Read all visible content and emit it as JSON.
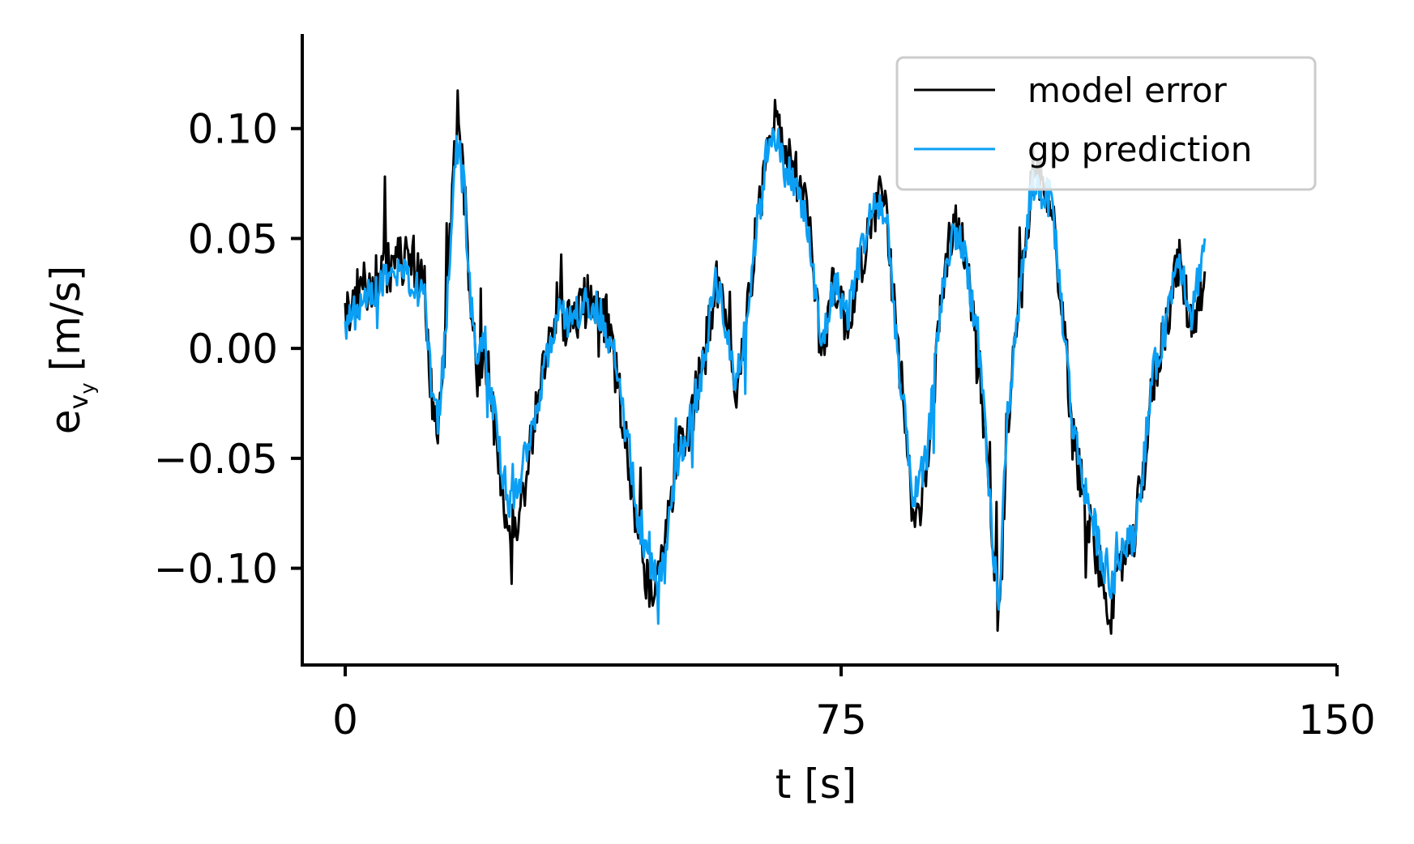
{
  "chart_data": {
    "type": "line",
    "xlabel": "t [s]",
    "ylabel_main": "e",
    "ylabel_sub1": "v",
    "ylabel_sub2": "y",
    "ylabel_unit": "[m/s]",
    "xlim": [
      -6.5,
      150
    ],
    "ylim": [
      -0.144,
      0.143
    ],
    "xticks": [
      0,
      75,
      150
    ],
    "xtick_labels": [
      "0",
      "75",
      "150"
    ],
    "yticks": [
      -0.1,
      -0.05,
      0.0,
      0.05,
      0.1
    ],
    "ytick_labels": [
      "−0.10",
      "−0.05",
      "0.00",
      "0.05",
      "0.10"
    ],
    "grid": false,
    "legend_position": "top-right",
    "series": [
      {
        "name": "model error",
        "color": "#000000",
        "x": [
          0,
          2,
          4,
          6,
          8,
          10,
          12,
          13,
          14,
          15,
          16,
          17,
          18,
          19,
          20,
          21,
          22,
          23,
          24,
          25,
          26,
          28,
          30,
          32,
          34,
          36,
          38,
          40,
          42,
          44,
          46,
          48,
          50,
          52,
          54,
          55,
          56,
          57,
          58,
          59,
          60,
          61,
          62,
          63,
          64,
          65,
          66,
          68,
          70,
          72,
          74,
          76,
          78,
          80,
          81,
          82,
          83,
          84,
          85,
          86,
          88,
          90,
          92,
          94,
          96,
          97,
          98,
          99,
          100,
          102,
          104,
          106,
          107,
          108,
          109,
          110,
          112,
          114,
          116,
          118,
          119,
          120,
          121,
          122,
          124,
          126,
          128,
          130
        ],
        "y": [
          0.015,
          0.025,
          0.03,
          0.035,
          0.04,
          0.042,
          0.03,
          -0.02,
          -0.04,
          0.0,
          0.06,
          0.11,
          0.07,
          0.02,
          -0.01,
          0.0,
          -0.02,
          -0.05,
          -0.07,
          -0.08,
          -0.08,
          -0.045,
          -0.01,
          0.02,
          0.01,
          0.02,
          0.025,
          0.005,
          -0.03,
          -0.08,
          -0.11,
          -0.1,
          -0.05,
          -0.035,
          -0.01,
          0.01,
          0.03,
          0.02,
          0.0,
          -0.02,
          0.0,
          0.02,
          0.05,
          0.07,
          0.1,
          0.11,
          0.09,
          0.08,
          0.06,
          0.0,
          0.03,
          0.01,
          0.04,
          0.06,
          0.07,
          0.06,
          0.02,
          -0.02,
          -0.05,
          -0.08,
          -0.06,
          0.02,
          0.06,
          0.04,
          -0.01,
          -0.05,
          -0.1,
          -0.125,
          -0.04,
          0.02,
          0.08,
          0.075,
          0.06,
          0.03,
          0.0,
          -0.04,
          -0.07,
          -0.1,
          -0.12,
          -0.09,
          -0.095,
          -0.07,
          -0.05,
          -0.02,
          0.01,
          0.04,
          0.01,
          0.035
        ]
      },
      {
        "name": "gp prediction",
        "color": "#0a9ff5",
        "x": [
          0,
          2,
          4,
          6,
          8,
          10,
          12,
          13,
          14,
          15,
          16,
          17,
          18,
          19,
          20,
          21,
          22,
          23,
          24,
          25,
          26,
          28,
          30,
          32,
          34,
          36,
          38,
          40,
          42,
          44,
          46,
          48,
          50,
          52,
          54,
          55,
          56,
          57,
          58,
          59,
          60,
          61,
          62,
          63,
          64,
          65,
          66,
          68,
          70,
          72,
          74,
          76,
          78,
          80,
          81,
          82,
          83,
          84,
          85,
          86,
          88,
          90,
          92,
          94,
          96,
          97,
          98,
          99,
          100,
          102,
          104,
          106,
          107,
          108,
          109,
          110,
          112,
          114,
          116,
          118,
          119,
          120,
          121,
          122,
          124,
          126,
          128,
          130
        ],
        "y": [
          0.01,
          0.02,
          0.025,
          0.03,
          0.032,
          0.03,
          0.025,
          -0.015,
          -0.035,
          0.0,
          0.055,
          0.1,
          0.07,
          0.02,
          -0.005,
          0.0,
          -0.02,
          -0.04,
          -0.06,
          -0.07,
          -0.065,
          -0.04,
          -0.01,
          0.015,
          0.01,
          0.02,
          0.02,
          0.005,
          -0.025,
          -0.07,
          -0.1,
          -0.1,
          -0.055,
          -0.035,
          -0.01,
          0.01,
          0.035,
          0.02,
          0.0,
          -0.015,
          0.0,
          0.02,
          0.05,
          0.07,
          0.095,
          0.1,
          0.085,
          0.075,
          0.055,
          0.0,
          0.03,
          0.015,
          0.045,
          0.065,
          0.065,
          0.055,
          0.02,
          -0.02,
          -0.04,
          -0.07,
          -0.05,
          0.02,
          0.055,
          0.04,
          -0.005,
          -0.05,
          -0.095,
          -0.115,
          -0.035,
          0.025,
          0.075,
          0.07,
          0.065,
          0.03,
          0.0,
          -0.035,
          -0.065,
          -0.09,
          -0.11,
          -0.085,
          -0.09,
          -0.07,
          -0.045,
          -0.015,
          0.01,
          0.045,
          0.015,
          0.05
        ]
      }
    ]
  }
}
